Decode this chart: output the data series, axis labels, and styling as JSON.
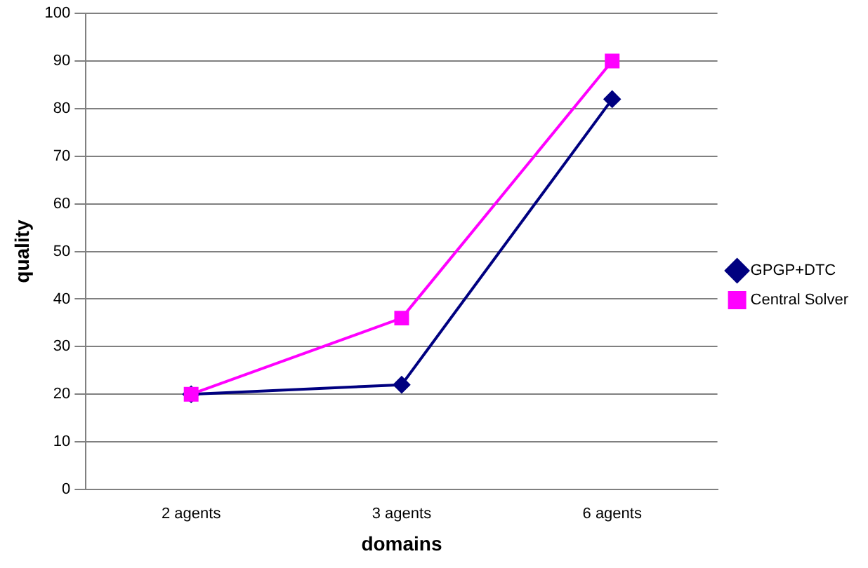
{
  "chart_data": {
    "type": "line",
    "xlabel": "domains",
    "ylabel": "quality",
    "categories": [
      "2 agents",
      "3 agents",
      "6 agents"
    ],
    "series": [
      {
        "name": "GPGP+DTC",
        "color": "#000080",
        "marker": "diamond",
        "values": [
          20,
          22,
          82
        ]
      },
      {
        "name": "Central Solver",
        "color": "#ff00ff",
        "marker": "square",
        "values": [
          20,
          36,
          90
        ]
      }
    ],
    "ylim": [
      0,
      100
    ],
    "yticks": [
      0,
      10,
      20,
      30,
      40,
      50,
      60,
      70,
      80,
      90,
      100
    ],
    "grid": "y",
    "legend": "right"
  }
}
